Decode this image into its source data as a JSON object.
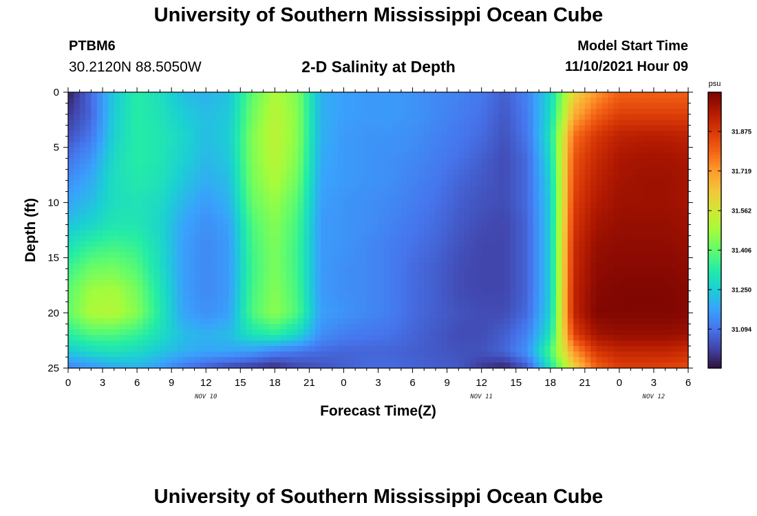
{
  "header": {
    "title": "University of Southern Mississippi Ocean Cube",
    "station": "PTBM6",
    "coords": "30.2120N  88.5050W",
    "subtitle": "2-D Salinity at Depth",
    "model_start_label": "Model Start Time",
    "model_start_value": "11/10/2021 Hour 09"
  },
  "footer": {
    "title": "University of Southern Mississippi Ocean Cube"
  },
  "chart_data": {
    "type": "heatmap",
    "xlabel": "Forecast Time(Z)",
    "ylabel": "Depth (ft)",
    "x_ticks": [
      "0",
      "3",
      "6",
      "9",
      "12",
      "15",
      "18",
      "21",
      "0",
      "3",
      "6",
      "9",
      "12",
      "15",
      "18",
      "21",
      "0",
      "3",
      "6"
    ],
    "x_range_hours": [
      0,
      54
    ],
    "date_labels": [
      {
        "text": "NOV 10",
        "at_hour": 12
      },
      {
        "text": "NOV 11",
        "at_hour": 36
      },
      {
        "text": "NOV 12",
        "at_hour": 51
      }
    ],
    "y_ticks": [
      0,
      5,
      10,
      15,
      20,
      25
    ],
    "ylim": [
      0,
      25
    ],
    "y_inverted": true,
    "colorbar": {
      "unit": "psu",
      "ticks": [
        "31.875",
        "31.719",
        "31.562",
        "31.406",
        "31.250",
        "31.094"
      ],
      "min": 30.94,
      "max": 32.03,
      "colors": [
        "#30123b",
        "#4145ab",
        "#4675ed",
        "#39a2fc",
        "#1bcfd4",
        "#24eca6",
        "#61fc6c",
        "#a4fc3b",
        "#d1e834",
        "#f3c63a",
        "#fe9b2d",
        "#f36315",
        "#d93806",
        "#b11901",
        "#7a0402"
      ]
    },
    "depths_ft": [
      0,
      2,
      4,
      6,
      8,
      10,
      12,
      14,
      16,
      18,
      20,
      22,
      23.5,
      25
    ],
    "times_hr": [
      0,
      2,
      4,
      6,
      8,
      10,
      12,
      14,
      16,
      18,
      20,
      22,
      24,
      26,
      28,
      30,
      32,
      34,
      36,
      38,
      40,
      42,
      44,
      46,
      48,
      50,
      52,
      54
    ],
    "values_psu": [
      [
        30.96,
        31.08,
        31.24,
        31.33,
        31.29,
        31.22,
        31.2,
        31.23,
        31.4,
        31.5,
        31.44,
        31.2,
        31.17,
        31.16,
        31.16,
        31.15,
        31.13,
        31.12,
        31.1,
        31.06,
        31.12,
        31.27,
        31.6,
        31.72,
        31.8,
        31.8,
        31.8,
        31.8
      ],
      [
        31.0,
        31.07,
        31.25,
        31.33,
        31.3,
        31.25,
        31.22,
        31.24,
        31.42,
        31.52,
        31.45,
        31.2,
        31.17,
        31.16,
        31.16,
        31.15,
        31.13,
        31.11,
        31.09,
        31.05,
        31.11,
        31.28,
        31.68,
        31.8,
        31.86,
        31.86,
        31.86,
        31.86
      ],
      [
        31.04,
        31.1,
        31.26,
        31.33,
        31.31,
        31.27,
        31.22,
        31.25,
        31.44,
        31.53,
        31.45,
        31.2,
        31.16,
        31.15,
        31.15,
        31.14,
        31.12,
        31.1,
        31.08,
        31.04,
        31.1,
        31.3,
        31.78,
        31.88,
        31.93,
        31.94,
        31.94,
        31.93
      ],
      [
        31.09,
        31.15,
        31.28,
        31.33,
        31.31,
        31.26,
        31.21,
        31.24,
        31.44,
        31.52,
        31.44,
        31.19,
        31.16,
        31.15,
        31.14,
        31.13,
        31.11,
        31.09,
        31.06,
        31.03,
        31.08,
        31.28,
        31.82,
        31.91,
        31.96,
        31.97,
        31.97,
        31.96
      ],
      [
        31.14,
        31.19,
        31.29,
        31.32,
        31.3,
        31.24,
        31.19,
        31.22,
        31.43,
        31.5,
        31.42,
        31.18,
        31.16,
        31.15,
        31.14,
        31.12,
        31.1,
        31.07,
        31.05,
        31.03,
        31.08,
        31.26,
        31.84,
        31.93,
        31.97,
        31.98,
        31.98,
        31.97
      ],
      [
        31.18,
        31.22,
        31.29,
        31.3,
        31.28,
        31.21,
        31.16,
        31.2,
        31.41,
        31.47,
        31.39,
        31.17,
        31.15,
        31.14,
        31.13,
        31.11,
        31.09,
        31.06,
        31.04,
        31.03,
        31.08,
        31.25,
        31.86,
        31.95,
        31.98,
        31.98,
        31.98,
        31.97
      ],
      [
        31.23,
        31.27,
        31.31,
        31.31,
        31.27,
        31.18,
        31.14,
        31.17,
        31.38,
        31.45,
        31.37,
        31.16,
        31.15,
        31.14,
        31.12,
        31.1,
        31.08,
        31.05,
        31.03,
        31.02,
        31.07,
        31.25,
        31.88,
        31.97,
        31.99,
        31.99,
        31.99,
        31.98
      ],
      [
        31.3,
        31.35,
        31.37,
        31.35,
        31.28,
        31.17,
        31.13,
        31.16,
        31.37,
        31.44,
        31.36,
        31.16,
        31.15,
        31.13,
        31.11,
        31.09,
        31.07,
        31.04,
        31.02,
        31.02,
        31.07,
        31.25,
        31.9,
        31.99,
        32.0,
        32.0,
        32.0,
        31.99
      ],
      [
        31.36,
        31.42,
        31.43,
        31.39,
        31.29,
        31.17,
        31.13,
        31.16,
        31.36,
        31.44,
        31.36,
        31.16,
        31.14,
        31.13,
        31.11,
        31.08,
        31.06,
        31.03,
        31.02,
        31.02,
        31.07,
        31.25,
        31.91,
        32.0,
        32.01,
        32.01,
        32.01,
        32.0
      ],
      [
        31.4,
        31.48,
        31.49,
        31.43,
        31.31,
        31.17,
        31.13,
        31.16,
        31.37,
        31.45,
        31.37,
        31.16,
        31.14,
        31.13,
        31.11,
        31.08,
        31.06,
        31.03,
        31.02,
        31.02,
        31.07,
        31.25,
        31.92,
        32.01,
        32.02,
        32.02,
        32.02,
        32.01
      ],
      [
        31.41,
        31.5,
        31.51,
        31.45,
        31.32,
        31.18,
        31.14,
        31.17,
        31.38,
        31.46,
        31.38,
        31.17,
        31.15,
        31.13,
        31.11,
        31.08,
        31.06,
        31.04,
        31.03,
        31.03,
        31.08,
        31.26,
        31.92,
        32.02,
        32.02,
        32.02,
        32.02,
        32.01
      ],
      [
        31.33,
        31.38,
        31.38,
        31.35,
        31.29,
        31.22,
        31.2,
        31.22,
        31.3,
        31.33,
        31.27,
        31.14,
        31.11,
        31.1,
        31.09,
        31.07,
        31.05,
        31.03,
        31.03,
        31.06,
        31.12,
        31.3,
        31.85,
        31.97,
        31.99,
        31.99,
        31.99,
        31.98
      ],
      [
        31.24,
        31.28,
        31.3,
        31.28,
        31.24,
        31.2,
        31.18,
        31.18,
        31.16,
        31.12,
        31.1,
        31.08,
        31.07,
        31.07,
        31.07,
        31.06,
        31.05,
        31.04,
        31.04,
        31.07,
        31.15,
        31.38,
        31.72,
        31.88,
        31.92,
        31.92,
        31.92,
        31.9
      ],
      [
        31.12,
        31.15,
        31.18,
        31.2,
        31.16,
        31.1,
        31.06,
        31.02,
        31.0,
        30.98,
        31.02,
        31.04,
        31.06,
        31.08,
        31.08,
        31.07,
        31.06,
        31.05,
        31.0,
        30.97,
        31.05,
        31.3,
        31.6,
        31.8,
        31.86,
        31.86,
        31.85,
        31.84
      ]
    ]
  }
}
